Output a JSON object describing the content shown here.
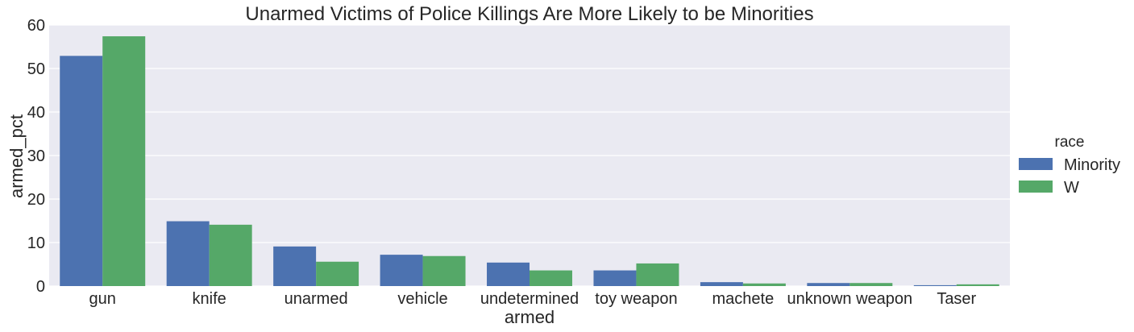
{
  "chart_data": {
    "type": "bar",
    "title": "Unarmed Victims of Police Killings Are More Likely to be Minorities",
    "xlabel": "armed",
    "ylabel": "armed_pct",
    "categories": [
      "gun",
      "knife",
      "unarmed",
      "vehicle",
      "undetermined",
      "toy weapon",
      "machete",
      "unknown weapon",
      "Taser"
    ],
    "series": [
      {
        "name": "Minority",
        "color": "#4c72b0",
        "values": [
          52.9,
          14.9,
          9.1,
          7.2,
          5.4,
          3.6,
          0.9,
          0.7,
          0.2
        ]
      },
      {
        "name": "W",
        "color": "#55a868",
        "values": [
          57.4,
          14.1,
          5.6,
          6.9,
          3.6,
          5.2,
          0.6,
          0.7,
          0.4
        ]
      }
    ],
    "ylim": [
      0,
      60
    ],
    "yticks": [
      0,
      10,
      20,
      30,
      40,
      50,
      60
    ],
    "grid": true,
    "legend": {
      "title": "race",
      "placement": "right"
    },
    "background_color": "#eaeaf2"
  }
}
